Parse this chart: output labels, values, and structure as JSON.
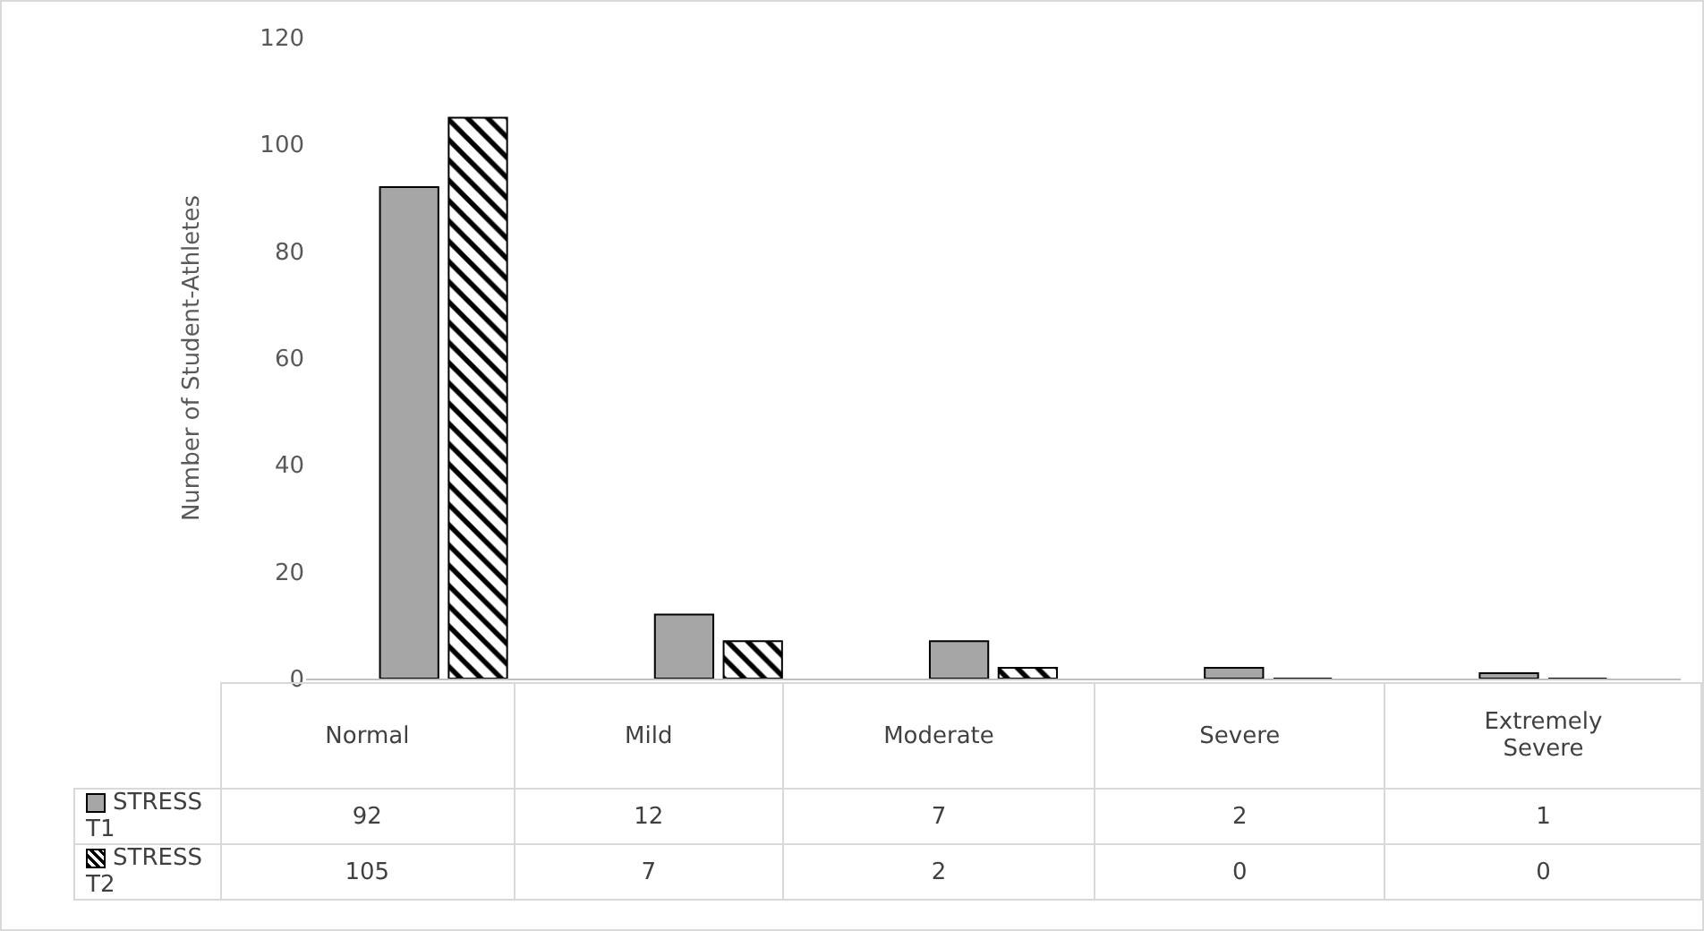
{
  "chart_data": {
    "type": "bar",
    "ylabel": "Number of Student-Athletes",
    "categories": [
      "Normal",
      "Mild",
      "Moderate",
      "Severe",
      "Extremely Severe"
    ],
    "series": [
      {
        "name": "STRESS T1",
        "color": "#a6a6a6",
        "values": [
          92,
          12,
          7,
          2,
          1
        ]
      },
      {
        "name": "STRESS T2",
        "color": "#000000",
        "values": [
          105,
          7,
          2,
          0,
          0
        ]
      }
    ],
    "ylim": [
      0,
      120
    ],
    "yticks": [
      0,
      20,
      40,
      60,
      80,
      100,
      120
    ],
    "grid": false,
    "data_labels": true,
    "legend": "bottom left"
  }
}
